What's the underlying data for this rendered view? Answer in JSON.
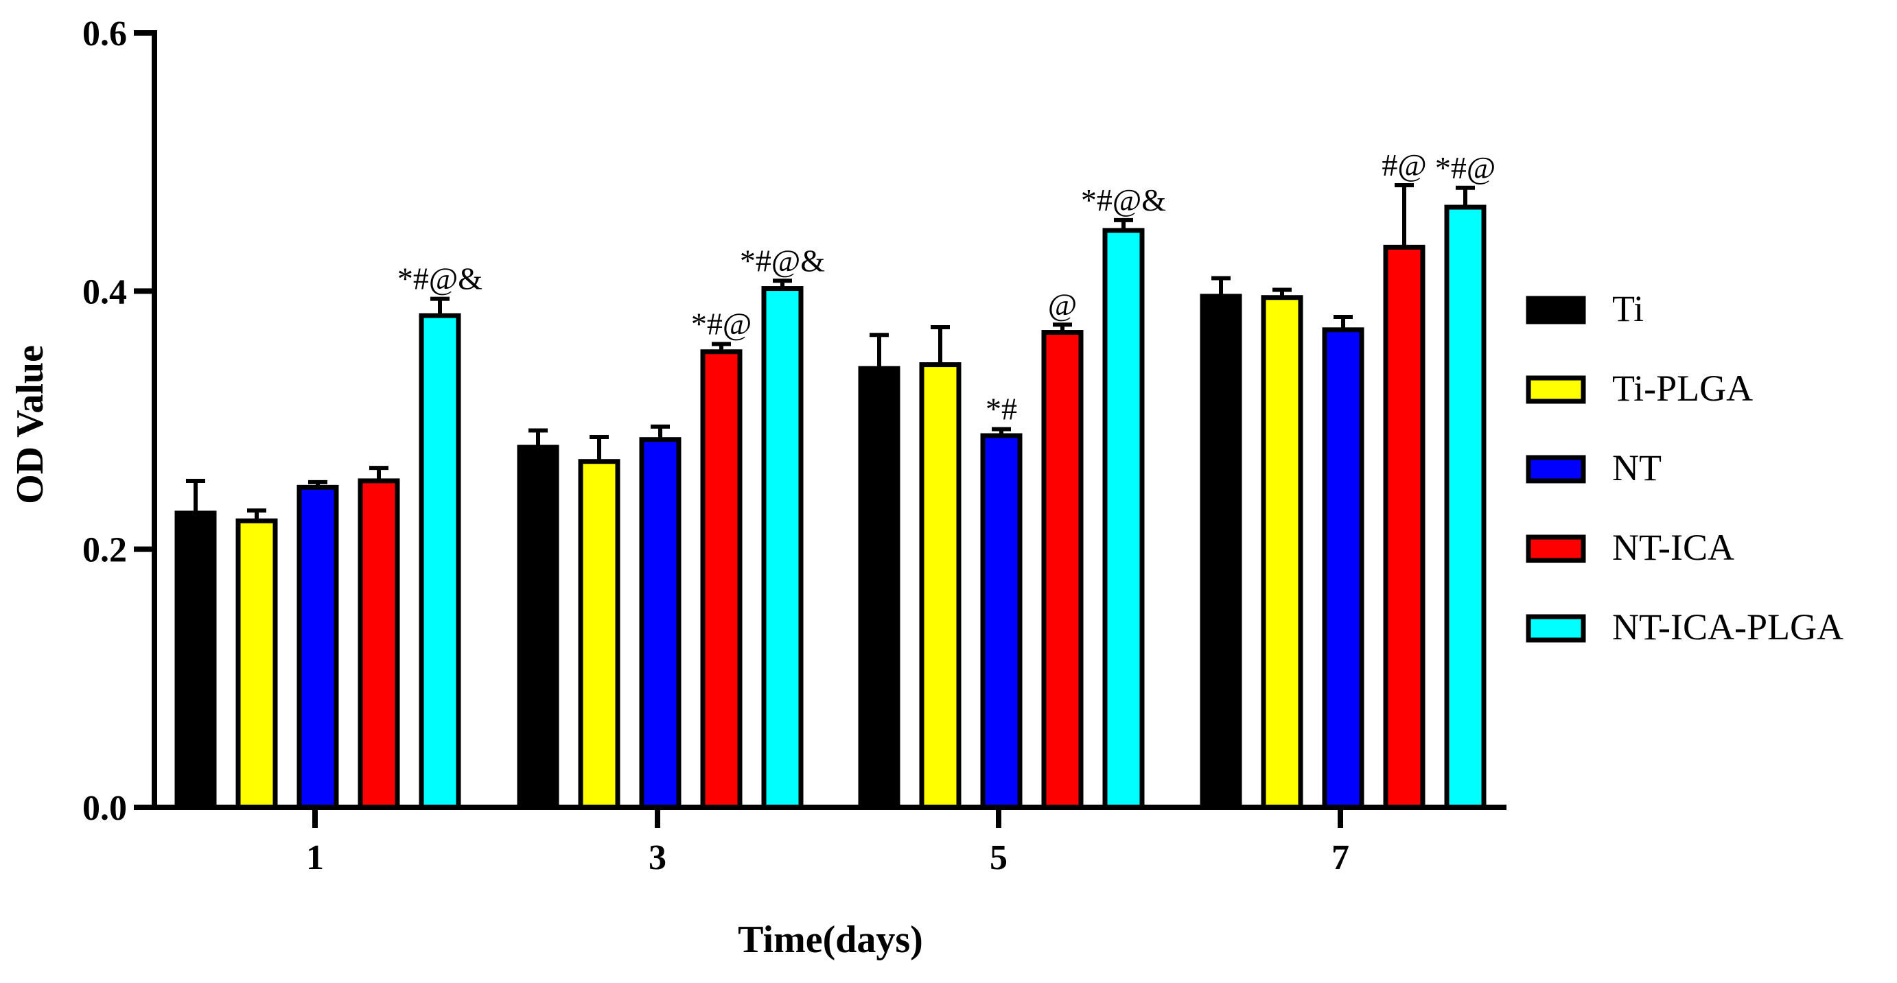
{
  "chart_data": {
    "type": "bar",
    "title": "",
    "xlabel": "Time(days)",
    "ylabel": "OD Value",
    "ylim": [
      0,
      0.6
    ],
    "yticks": [
      0.0,
      0.2,
      0.4,
      0.6
    ],
    "ytick_labels": [
      "0.0",
      "0.2",
      "0.4",
      "0.6"
    ],
    "categories": [
      "1",
      "3",
      "5",
      "7"
    ],
    "grid": false,
    "legend_position": "right",
    "series": [
      {
        "name": "Ti",
        "color": "#000000",
        "values": [
          0.228,
          0.279,
          0.34,
          0.396
        ],
        "errors": [
          0.025,
          0.013,
          0.026,
          0.014
        ],
        "annotations": [
          "",
          "",
          "",
          ""
        ]
      },
      {
        "name": "Ti-PLGA",
        "color": "#ffff00",
        "values": [
          0.222,
          0.268,
          0.343,
          0.395
        ],
        "errors": [
          0.008,
          0.019,
          0.029,
          0.006
        ],
        "annotations": [
          "",
          "",
          "",
          ""
        ]
      },
      {
        "name": "NT",
        "color": "#0000ff",
        "values": [
          0.248,
          0.285,
          0.288,
          0.37
        ],
        "errors": [
          0.004,
          0.01,
          0.005,
          0.01
        ],
        "annotations": [
          "",
          "",
          "*#",
          ""
        ]
      },
      {
        "name": "NT-ICA",
        "color": "#ff0000",
        "values": [
          0.253,
          0.353,
          0.368,
          0.434
        ],
        "errors": [
          0.01,
          0.006,
          0.006,
          0.048
        ],
        "annotations": [
          "",
          "*#@",
          "@",
          "#@"
        ]
      },
      {
        "name": "NT-ICA-PLGA",
        "color": "#00ffff",
        "values": [
          0.381,
          0.402,
          0.447,
          0.465
        ],
        "errors": [
          0.013,
          0.006,
          0.008,
          0.015
        ],
        "annotations": [
          "*#@&",
          "*#@&",
          "*#@&",
          "*#@"
        ]
      }
    ]
  }
}
